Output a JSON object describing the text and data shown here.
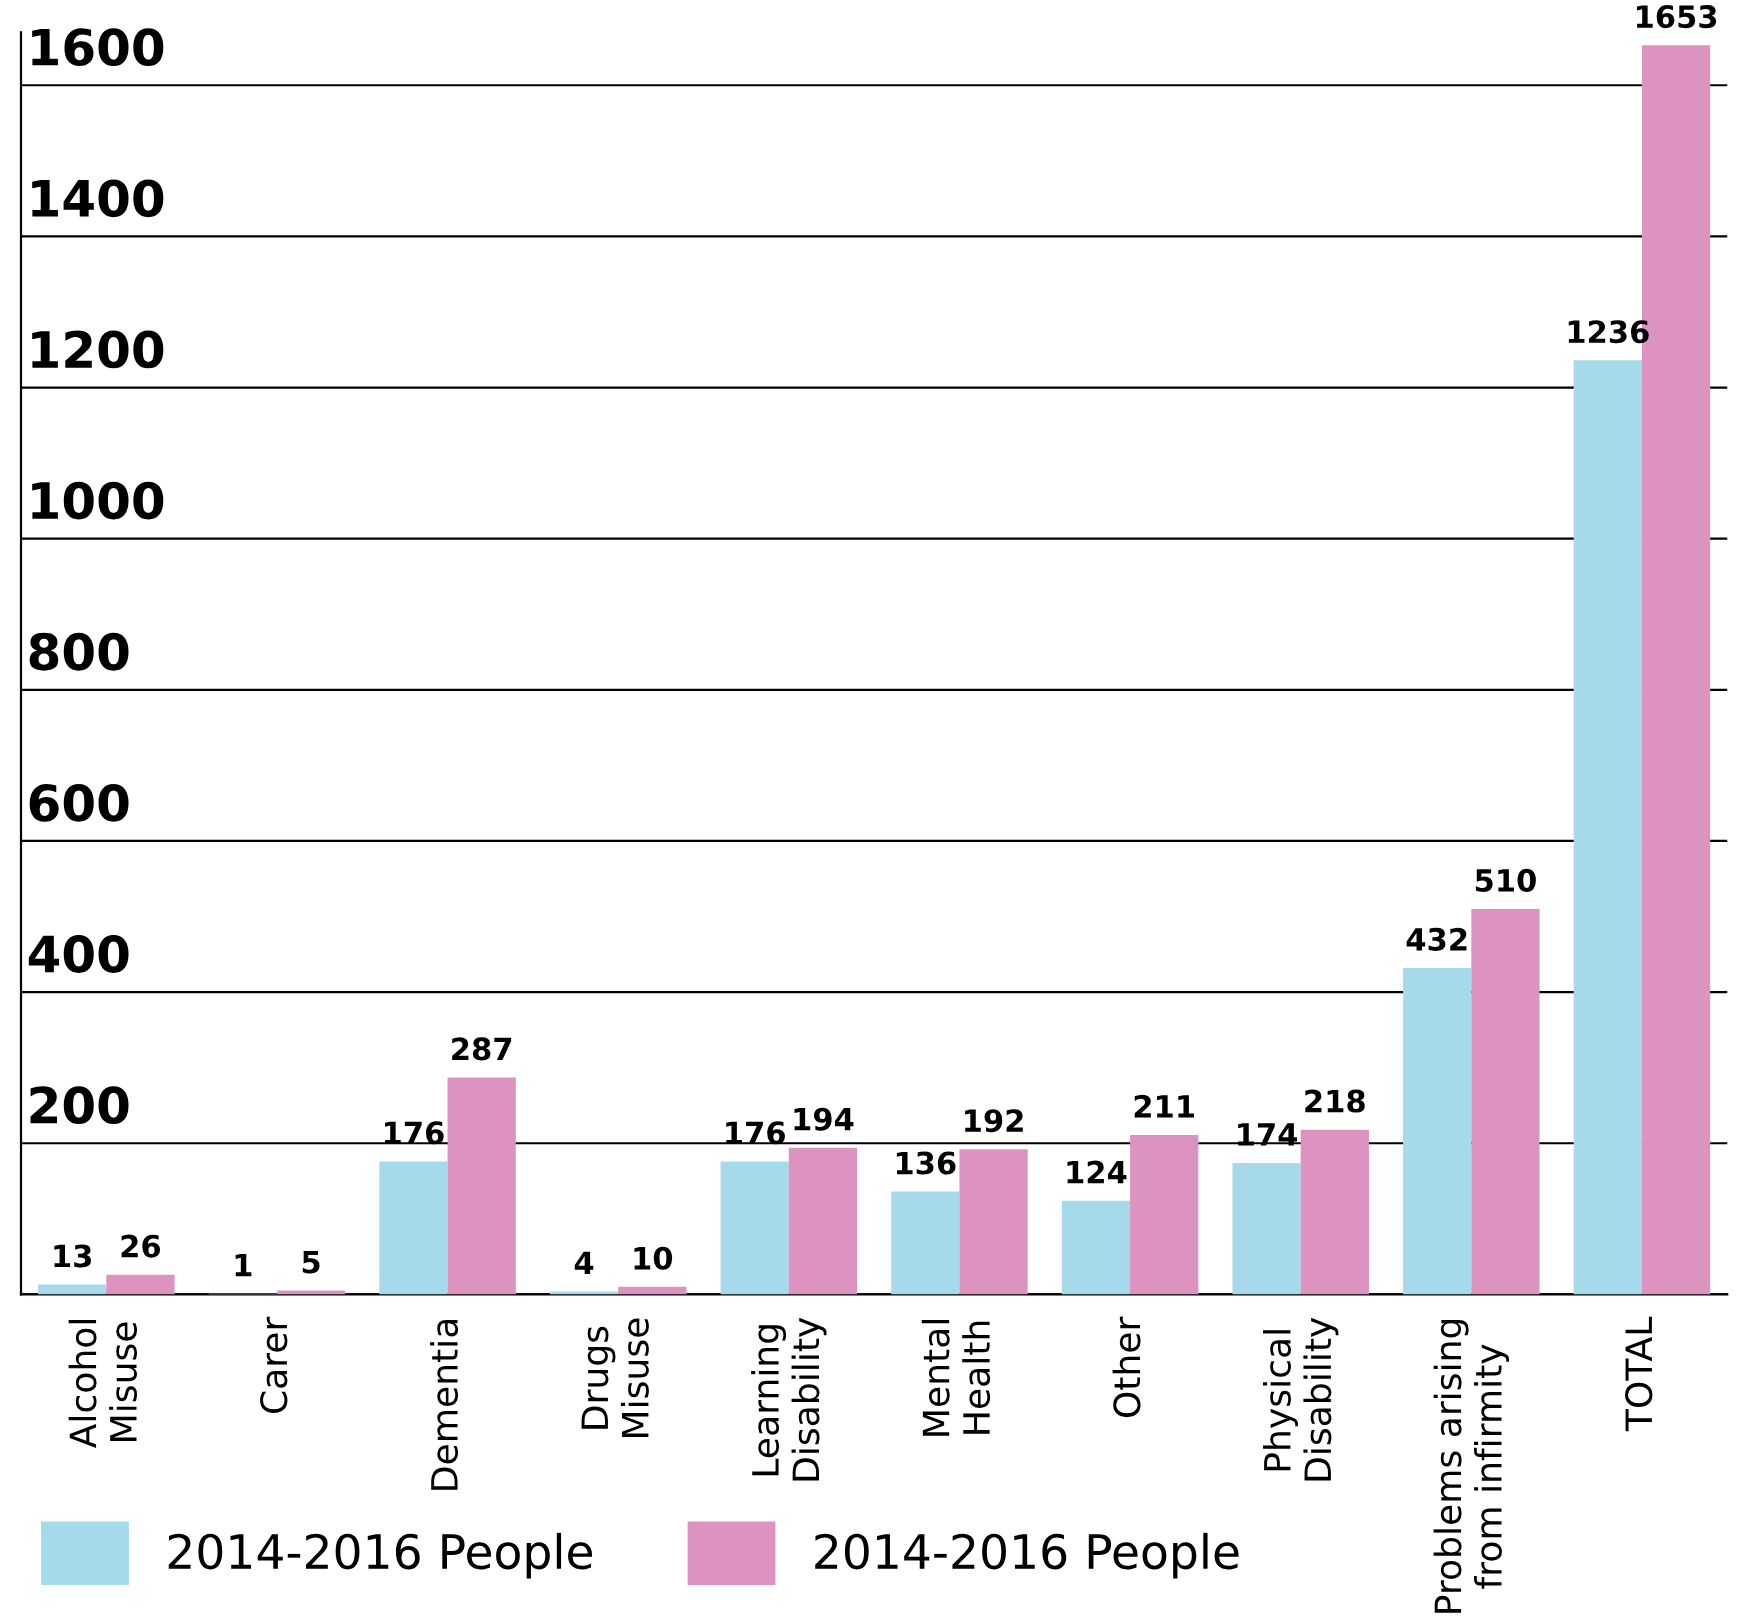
{
  "chart_data": {
    "type": "bar",
    "categories": [
      "Alcohol\nMisuse",
      "Carer",
      "Dementia",
      "Drugs\nMisuse",
      "Learning\nDisability",
      "Mental\nHealth",
      "Other",
      "Physical\nDisability",
      "Problems arising\nfrom infirmity",
      "TOTAL"
    ],
    "series": [
      {
        "name": "2014-2016 People",
        "color": "#a6d9ea",
        "values": [
          13,
          1,
          176,
          4,
          176,
          136,
          124,
          174,
          432,
          1236
        ]
      },
      {
        "name": "2014-2016 People",
        "color": "#dc93c0",
        "values": [
          26,
          5,
          287,
          10,
          194,
          192,
          211,
          218,
          510,
          1653
        ]
      }
    ],
    "ylim": [
      0,
      1670
    ],
    "yticks": [
      {
        "value": 0,
        "label": null
      },
      200,
      400,
      600,
      800,
      1000,
      1200,
      1400,
      1600
    ],
    "grid": "y",
    "legend": "bottom left",
    "data_labels": true
  }
}
